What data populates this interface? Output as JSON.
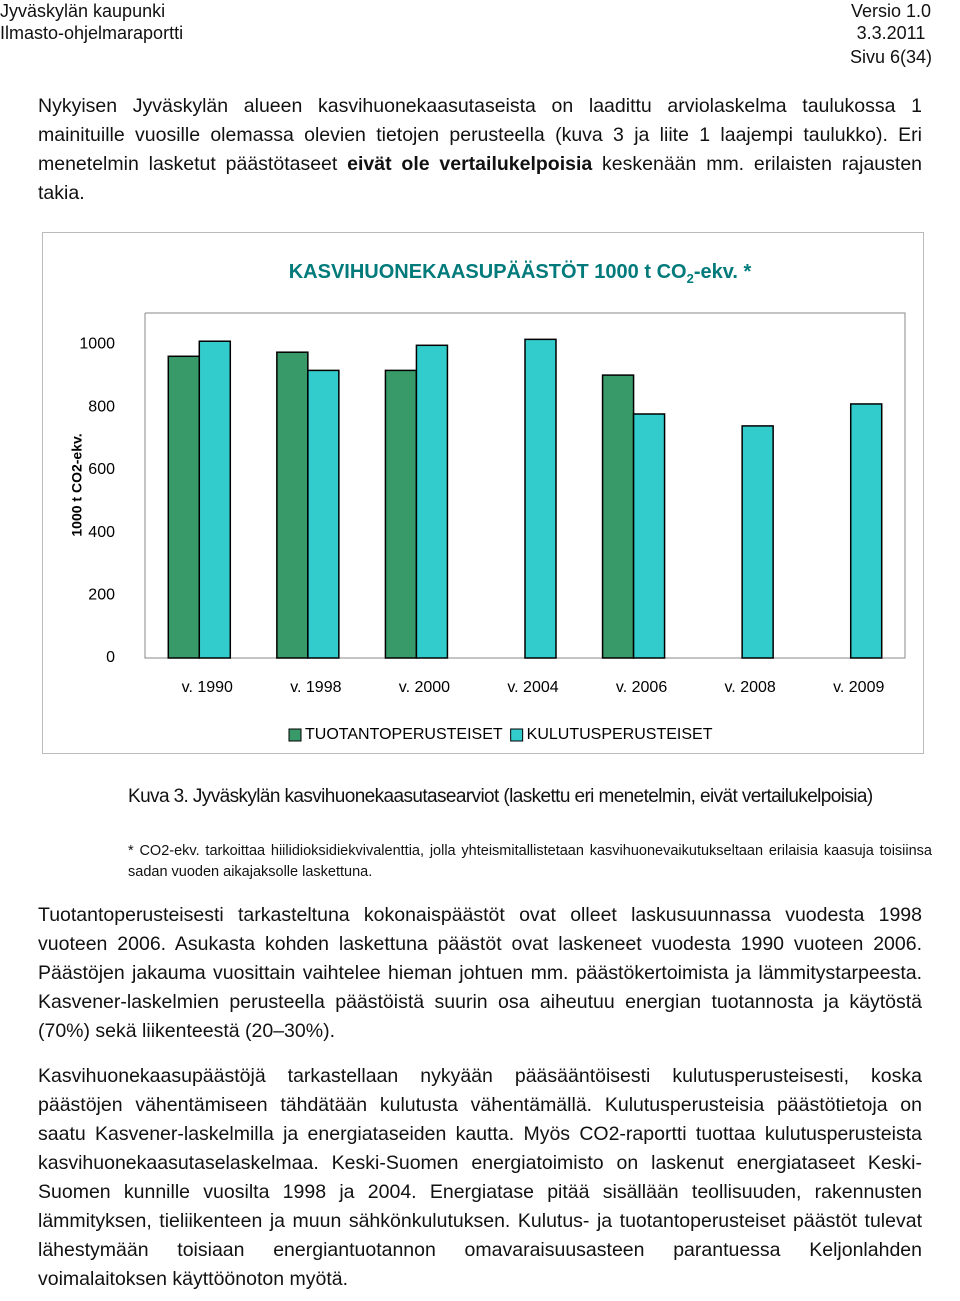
{
  "header": {
    "organization": "Jyväskylän kaupunki",
    "report": "Ilmasto-ohjelmaraportti",
    "version": "Versio 1.0",
    "date": "3.3.2011",
    "page": "Sivu 6(34)"
  },
  "intro": {
    "before": "Nykyisen Jyväskylän alueen kasvihuonekaasutaseista on laadittu arviolaskelma taulukossa 1 mainituille vuosille olemassa olevien tietojen perusteella (kuva 3 ja liite 1 laajempi taulukko). Eri menetelmin lasketut päästötaseet ",
    "bold": "eivät ole vertailukelpoisia",
    "after": " keskenään mm. erilaisten rajausten takia."
  },
  "chart_data": {
    "type": "bar",
    "title_parts": [
      "KASVIHUONEKAASUPÄÄSTÖT 1000 t CO",
      "2",
      "-ekv. *"
    ],
    "y_label": "1000 t CO2-ekv.",
    "categories": [
      "v. 1990",
      "v. 1998",
      "v. 2000",
      "v. 2004",
      "v. 2006",
      "v. 2008",
      "v. 2009"
    ],
    "series": [
      {
        "name": "TUOTANTOPERUSTEISET",
        "color": "#389a68",
        "values": [
          962,
          975,
          917,
          null,
          902,
          null,
          null
        ]
      },
      {
        "name": "KULUTUSPERUSTEISET",
        "color": "#33cccc",
        "values": [
          1010,
          917,
          997,
          1016,
          778,
          740,
          810
        ]
      }
    ],
    "ylim": [
      0,
      1100
    ],
    "yticks": [
      0,
      200,
      400,
      600,
      800,
      1000
    ],
    "grid": false,
    "legend": "bottom"
  },
  "caption": "Kuva 3. Jyväskylän kasvihuonekaasutasearviot (laskettu eri menetelmin, eivät vertailukelpoisia)",
  "footnote": "* CO2-ekv. tarkoittaa hiilidioksidiekvivalenttia, jolla yhteismitallistetaan kasvihuonevaikutukseltaan erilaisia kaasuja toisiinsa sadan vuoden aikajaksolle laskettuna.",
  "body": [
    "Tuotantoperusteisesti tarkasteltuna kokonaispäästöt ovat olleet laskusuunnassa vuodesta 1998 vuoteen 2006. Asukasta kohden laskettuna päästöt ovat laskeneet vuodesta 1990 vuoteen 2006. Päästöjen jakauma vuosittain vaihtelee hieman johtuen mm. päästökertoimista ja lämmitystarpeesta. Kasvener-laskelmien perusteella päästöistä suurin osa aiheutuu energian tuotannosta ja käytöstä (70%) sekä liikenteestä (20–30%).",
    "Kasvihuonekaasupäästöjä tarkastellaan nykyään pääsääntöisesti kulutusperusteisesti, koska päästöjen vähentämiseen tähdätään kulutusta vähentämällä. Kulutusperusteisia päästötietoja on saatu Kasvener-laskelmilla ja energiataseiden kautta. Myös CO2-raportti tuottaa kulutusperusteista kasvihuonekaasutaselaskelmaa. Keski-Suomen energiatoimisto on laskenut energiataseet Keski-Suomen kunnille vuosilta 1998 ja 2004. Energiatase pitää sisällään teollisuuden, rakennusten lämmityksen, tieliikenteen ja muun sähkönkulutuksen. Kulutus- ja tuotantoperusteiset päästöt tulevat lähestymään toisiaan energiantuotannon omavaraisuusasteen parantuessa Keljonlahden voimalaitoksen käyttöönoton myötä."
  ]
}
